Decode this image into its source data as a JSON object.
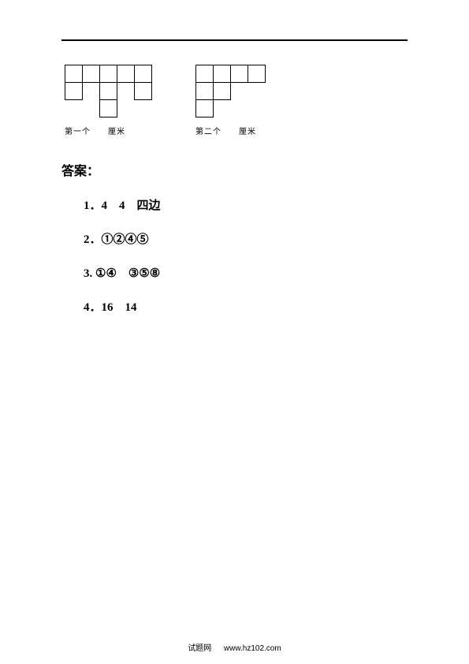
{
  "page": {
    "cell_size": 22,
    "shapes": [
      {
        "caption": "第一个　　厘米",
        "width_cells": 5,
        "height_cells": 3,
        "cells": [
          [
            0,
            0
          ],
          [
            1,
            0
          ],
          [
            2,
            0
          ],
          [
            3,
            0
          ],
          [
            4,
            0
          ],
          [
            0,
            1
          ],
          [
            4,
            1
          ],
          [
            2,
            1
          ],
          [
            2,
            2
          ]
        ]
      },
      {
        "caption": "第二个　　厘米",
        "width_cells": 4,
        "height_cells": 3,
        "cells": [
          [
            0,
            0
          ],
          [
            1,
            0
          ],
          [
            2,
            0
          ],
          [
            3,
            0
          ],
          [
            0,
            1
          ],
          [
            1,
            1
          ],
          [
            0,
            2
          ]
        ]
      }
    ],
    "answers_title": "答案：",
    "answers": [
      "1．4　4　四边",
      "2．①②④⑤",
      "3. ①④　③⑤⑧",
      "4．16　14"
    ],
    "footer_label": "试题网",
    "footer_url": "www.hz102.com"
  }
}
